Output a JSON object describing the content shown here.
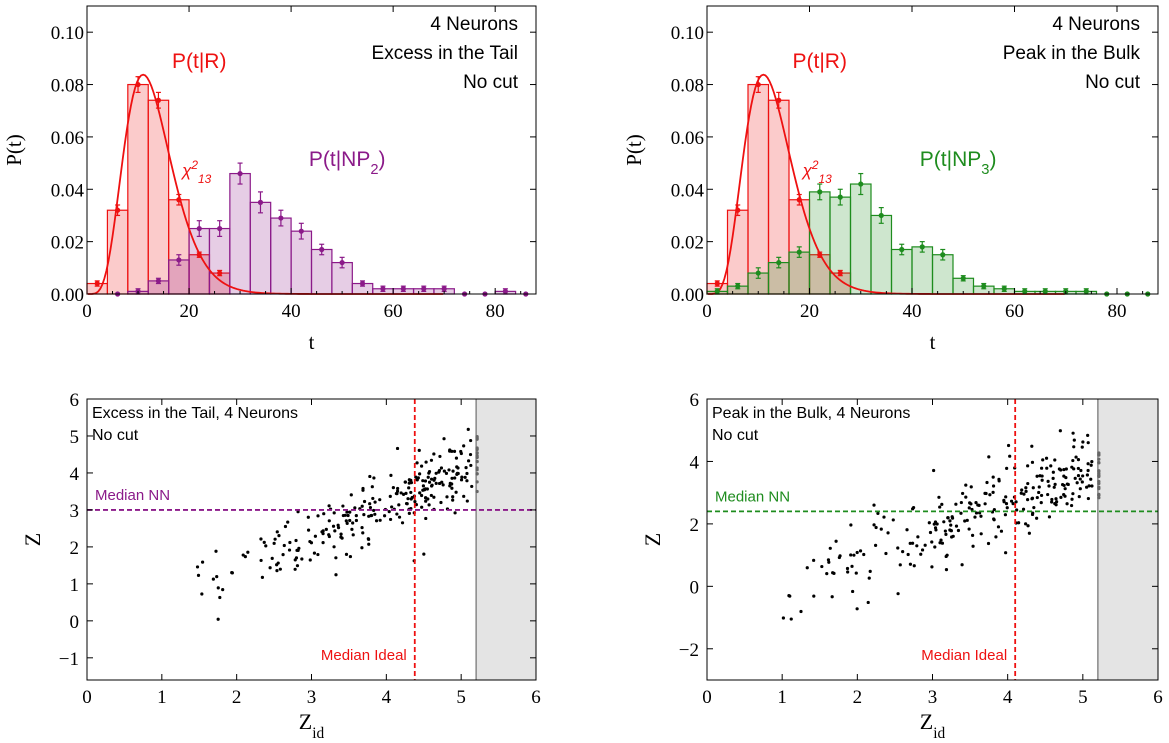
{
  "chart_data": [
    {
      "type": "bar",
      "panel": "top-left",
      "annotations": [
        "4 Neurons",
        "Excess in the Tail",
        "No cut"
      ],
      "xlabel": "t",
      "ylabel": "P(t)",
      "xlim": [
        0,
        88
      ],
      "ylim": [
        0,
        0.11
      ],
      "xticks": [
        0,
        20,
        40,
        60,
        80
      ],
      "yticks": [
        0.0,
        0.02,
        0.04,
        0.06,
        0.08,
        0.1
      ],
      "ytick_labels": [
        "0.00",
        "0.02",
        "0.04",
        "0.06",
        "0.08",
        "0.10"
      ],
      "series": [
        {
          "name": "P(t|R)",
          "color": "#ee1111",
          "bin_width": 4,
          "bin_centers": [
            2,
            6,
            10,
            14,
            18,
            22,
            26
          ],
          "values": [
            0.004,
            0.032,
            0.08,
            0.074,
            0.036,
            0.015,
            0.008
          ],
          "errors": [
            0.001,
            0.002,
            0.003,
            0.003,
            0.002,
            0.001,
            0.001
          ]
        },
        {
          "name": "P(t|NP2)",
          "label_main": "P(t|NP",
          "label_sub": "2",
          "label_end": ")",
          "color": "#8b1a89",
          "bin_width": 4,
          "bin_centers": [
            6,
            10,
            14,
            18,
            22,
            26,
            30,
            34,
            38,
            42,
            46,
            50,
            54,
            58,
            62,
            66,
            70,
            74,
            78,
            82,
            86
          ],
          "values": [
            0.0,
            0.001,
            0.005,
            0.013,
            0.025,
            0.025,
            0.046,
            0.035,
            0.029,
            0.024,
            0.017,
            0.012,
            0.004,
            0.002,
            0.002,
            0.002,
            0.002,
            0.0,
            0.0,
            0.001,
            0.0
          ],
          "errors": [
            0,
            0.001,
            0.001,
            0.002,
            0.003,
            0.003,
            0.004,
            0.004,
            0.003,
            0.003,
            0.002,
            0.002,
            0.001,
            0.001,
            0.001,
            0.001,
            0.001,
            0,
            0,
            0.001,
            0
          ]
        }
      ],
      "fit": {
        "name": "χ²₁₃",
        "label_main": "χ",
        "label_sup": "2",
        "label_sub": "13",
        "color": "#ee1111",
        "dof": 13
      }
    },
    {
      "type": "bar",
      "panel": "top-right",
      "annotations": [
        "4 Neurons",
        "Peak in the Bulk",
        "No cut"
      ],
      "xlabel": "t",
      "ylabel": "P(t)",
      "xlim": [
        0,
        88
      ],
      "ylim": [
        0,
        0.11
      ],
      "xticks": [
        0,
        20,
        40,
        60,
        80
      ],
      "yticks": [
        0.0,
        0.02,
        0.04,
        0.06,
        0.08,
        0.1
      ],
      "ytick_labels": [
        "0.00",
        "0.02",
        "0.04",
        "0.06",
        "0.08",
        "0.10"
      ],
      "series": [
        {
          "name": "P(t|R)",
          "color": "#ee1111",
          "bin_width": 4,
          "bin_centers": [
            2,
            6,
            10,
            14,
            18,
            22,
            26
          ],
          "values": [
            0.004,
            0.032,
            0.08,
            0.074,
            0.036,
            0.015,
            0.008
          ],
          "errors": [
            0.001,
            0.002,
            0.003,
            0.003,
            0.002,
            0.001,
            0.001
          ]
        },
        {
          "name": "P(t|NP3)",
          "label_main": "P(t|NP",
          "label_sub": "3",
          "label_end": ")",
          "color": "#1e8c1e",
          "bin_width": 4,
          "bin_centers": [
            2,
            6,
            10,
            14,
            18,
            22,
            26,
            30,
            34,
            38,
            42,
            46,
            50,
            54,
            58,
            62,
            66,
            70,
            74,
            78,
            82,
            86
          ],
          "values": [
            0.001,
            0.003,
            0.008,
            0.012,
            0.016,
            0.039,
            0.037,
            0.042,
            0.03,
            0.017,
            0.018,
            0.015,
            0.006,
            0.003,
            0.002,
            0.001,
            0.001,
            0.001,
            0.001,
            0.0,
            0.0,
            0.0
          ],
          "errors": [
            0.001,
            0.001,
            0.002,
            0.002,
            0.002,
            0.003,
            0.003,
            0.004,
            0.003,
            0.002,
            0.002,
            0.002,
            0.001,
            0.001,
            0.001,
            0.001,
            0.001,
            0.001,
            0.001,
            0,
            0,
            0
          ]
        }
      ],
      "fit": {
        "name": "χ²₁₃",
        "label_main": "χ",
        "label_sup": "2",
        "label_sub": "13",
        "color": "#ee1111",
        "dof": 13
      }
    },
    {
      "type": "scatter",
      "panel": "bottom-left",
      "annotations": [
        "Excess in the Tail, 4 Neurons",
        "No cut"
      ],
      "xlabel_main": "Z",
      "xlabel_sub": "id",
      "ylabel": "Z",
      "xlim": [
        0,
        6
      ],
      "ylim": [
        -1.6,
        6
      ],
      "xticks": [
        0,
        1,
        2,
        3,
        4,
        5,
        6
      ],
      "yticks": [
        -1,
        0,
        1,
        2,
        3,
        4,
        5,
        6
      ],
      "ytick_labels": [
        "−1",
        "0",
        "1",
        "2",
        "3",
        "4",
        "5",
        "6"
      ],
      "median_nn": {
        "label": "Median NN",
        "value": 3.0,
        "color": "#8b1a89"
      },
      "median_ideal": {
        "label": "Median Ideal",
        "value": 4.38,
        "color": "#ee1111"
      },
      "shaded_region": {
        "from": 5.2,
        "to": 6
      },
      "point_cloud": {
        "count": 260,
        "x_min": 1.3,
        "x_max": 5.2,
        "y_center_at_xmin": 0.9,
        "slope": 0.85,
        "spread": 0.45
      }
    },
    {
      "type": "scatter",
      "panel": "bottom-right",
      "annotations": [
        "Peak in the Bulk, 4 Neurons",
        "No cut"
      ],
      "xlabel_main": "Z",
      "xlabel_sub": "id",
      "ylabel": "Z",
      "xlim": [
        0,
        6
      ],
      "ylim": [
        -3,
        6
      ],
      "xticks": [
        0,
        1,
        2,
        3,
        4,
        5,
        6
      ],
      "yticks": [
        -2,
        0,
        2,
        4,
        6
      ],
      "ytick_labels": [
        "−2",
        "0",
        "2",
        "4",
        "6"
      ],
      "median_nn": {
        "label": "Median NN",
        "value": 2.4,
        "color": "#1e8c1e"
      },
      "median_ideal": {
        "label": "Median Ideal",
        "value": 4.1,
        "color": "#ee1111"
      },
      "shaded_region": {
        "from": 5.2,
        "to": 6
      },
      "point_cloud": {
        "count": 260,
        "x_min": 0.8,
        "x_max": 5.2,
        "y_center_at_xmin": -0.3,
        "slope": 0.95,
        "spread": 0.7
      }
    }
  ]
}
